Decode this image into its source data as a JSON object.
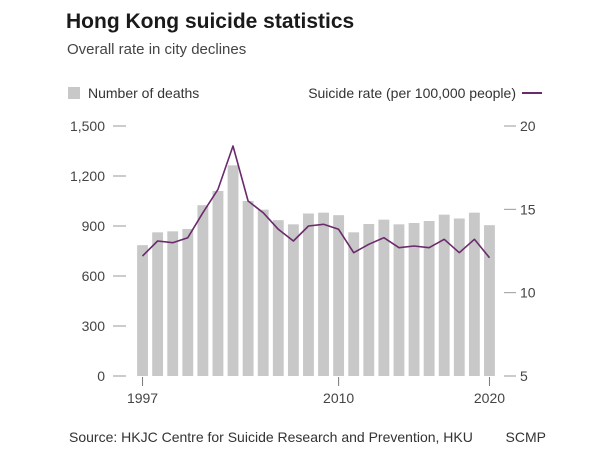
{
  "chart_data": {
    "type": "bar+line",
    "title": "Hong Kong suicide statistics",
    "subtitle": "Overall rate in city declines",
    "x": [
      1997,
      1998,
      1999,
      2000,
      2001,
      2002,
      2003,
      2004,
      2005,
      2006,
      2007,
      2008,
      2009,
      2010,
      2011,
      2012,
      2013,
      2014,
      2015,
      2016,
      2017,
      2018,
      2019,
      2020
    ],
    "x_tick_labels": [
      "1997",
      "2010",
      "2020"
    ],
    "series": [
      {
        "name": "Number of deaths",
        "kind": "bar",
        "axis": "left",
        "color": "#c8c8c8",
        "values": [
          785,
          862,
          868,
          882,
          1025,
          1110,
          1264,
          1050,
          998,
          935,
          910,
          975,
          980,
          965,
          862,
          912,
          938,
          910,
          918,
          930,
          968,
          945,
          980,
          905
        ]
      },
      {
        "name": "Suicide rate (per 100,000 people)",
        "kind": "line",
        "axis": "right",
        "color": "#6b2a6b",
        "values": [
          12.2,
          13.1,
          13.0,
          13.3,
          14.8,
          16.2,
          18.8,
          15.5,
          14.8,
          13.8,
          13.1,
          14.0,
          14.1,
          13.8,
          12.4,
          12.9,
          13.3,
          12.7,
          12.8,
          12.7,
          13.2,
          12.4,
          13.2,
          12.1
        ]
      }
    ],
    "y_left": {
      "ticks": [
        0,
        300,
        600,
        900,
        1200,
        1500
      ],
      "tick_labels": [
        "0",
        "300",
        "600",
        "900",
        "1,200",
        "1,500"
      ],
      "ylim": [
        0,
        1500
      ]
    },
    "y_right": {
      "ticks": [
        5,
        10,
        15,
        20
      ],
      "tick_labels": [
        "5",
        "10",
        "15",
        "20"
      ],
      "ylim": [
        5,
        20
      ]
    },
    "grid": false,
    "legend_placement": "top"
  },
  "legend": {
    "left_label": "Number of deaths",
    "right_label": "Suicide rate (per 100,000 people)"
  },
  "footer": {
    "source": "Source: HKJC Centre for Suicide Research and Prevention, HKU",
    "brand": "SCMP"
  }
}
